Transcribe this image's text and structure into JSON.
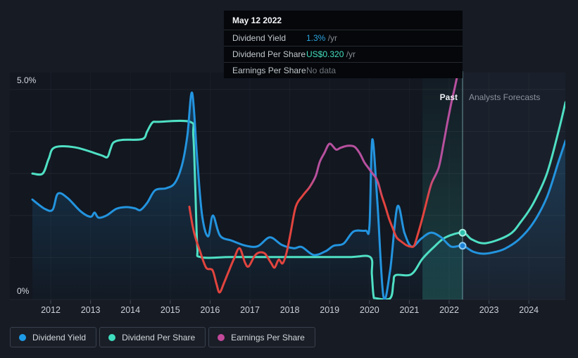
{
  "tooltip": {
    "date": "May 12 2022",
    "rows": [
      {
        "label": "Dividend Yield",
        "value": "1.3%",
        "suffix": " /yr",
        "value_color": "#2ba3e0"
      },
      {
        "label": "Dividend Per Share",
        "value": "US$0.320",
        "suffix": " /yr",
        "value_color": "#43dfc0"
      },
      {
        "label": "Earnings Per Share",
        "value": "No data",
        "suffix": "",
        "value_color": "#70767e"
      }
    ]
  },
  "labels": {
    "past": "Past",
    "forecast": "Analysts Forecasts"
  },
  "legend": {
    "items": [
      {
        "label": "Dividend Yield",
        "color": "#1e9be8"
      },
      {
        "label": "Dividend Per Share",
        "color": "#3fdec0"
      },
      {
        "label": "Earnings Per Share",
        "color": "#c2499a"
      }
    ]
  },
  "colors": {
    "page_bg": "#161b24",
    "past_plot_bg": "#121720",
    "forecast_plot_bg": "#1a202b",
    "band_teal": "64,224,195",
    "grid_line": "rgba(255,255,255,0.055)",
    "year_grid_line": "rgba(255,255,255,0.03)",
    "tick": "#434b56",
    "axis_text": "#cdd2d8",
    "divider": "rgba(135,190,198,0.5)",
    "blue": "#2394df",
    "teal": "#4fe0c4",
    "red": "#e2443e",
    "magenta": "#b7509e",
    "area_fill_rgb": "35,148,223"
  },
  "chart_data": {
    "type": "line",
    "title": "Dividend history and forecast",
    "x_axis": {
      "ticks": [
        2012,
        2013,
        2014,
        2015,
        2016,
        2017,
        2018,
        2019,
        2020,
        2021,
        2022,
        2023,
        2024
      ]
    },
    "y_axis": {
      "label_top": "5.0%",
      "label_bottom": "0%",
      "range_pct": [
        0,
        5
      ],
      "gridline_every_pct": 1
    },
    "divider_year": 2022.336,
    "highlight_band": {
      "from_year": 2021.33,
      "to_year": 2022.336
    },
    "series": [
      {
        "name": "Dividend Per Share",
        "color": "#4fe0c4",
        "marker": {
          "year": 2022.336,
          "pct": 1.59,
          "fill": "#2dbfae",
          "ring": "#a9eee1"
        },
        "points": [
          [
            2011.54,
            3.0
          ],
          [
            2011.8,
            3.0
          ],
          [
            2011.95,
            3.35
          ],
          [
            2012.1,
            3.62
          ],
          [
            2012.62,
            3.62
          ],
          [
            2013.25,
            3.44
          ],
          [
            2013.42,
            3.39
          ],
          [
            2013.5,
            3.58
          ],
          [
            2013.58,
            3.74
          ],
          [
            2013.8,
            3.8
          ],
          [
            2014.3,
            3.82
          ],
          [
            2014.42,
            4.0
          ],
          [
            2014.55,
            4.21
          ],
          [
            2014.7,
            4.23
          ],
          [
            2015.5,
            4.23
          ],
          [
            2015.58,
            3.9
          ],
          [
            2015.63,
            2.6
          ],
          [
            2015.68,
            1.25
          ],
          [
            2015.76,
            1.01
          ],
          [
            2016.5,
            1.01
          ],
          [
            2017.5,
            1.01
          ],
          [
            2018.5,
            1.01
          ],
          [
            2019.5,
            1.01
          ],
          [
            2020.02,
            1.01
          ],
          [
            2020.06,
            0.6
          ],
          [
            2020.1,
            0.1
          ],
          [
            2020.16,
            0.03
          ],
          [
            2020.52,
            0.03
          ],
          [
            2020.6,
            0.4
          ],
          [
            2020.66,
            0.58
          ],
          [
            2021.05,
            0.6
          ],
          [
            2021.33,
            0.97
          ],
          [
            2021.63,
            1.26
          ],
          [
            2021.91,
            1.48
          ],
          [
            2022.336,
            1.59
          ],
          [
            2022.57,
            1.43
          ],
          [
            2022.92,
            1.34
          ],
          [
            2023.5,
            1.54
          ],
          [
            2023.8,
            1.85
          ],
          [
            2024.1,
            2.27
          ],
          [
            2024.45,
            2.99
          ],
          [
            2024.74,
            3.99
          ],
          [
            2024.92,
            4.7
          ]
        ]
      },
      {
        "name": "Dividend Yield",
        "color": "#2394df",
        "area": true,
        "marker": {
          "year": 2022.336,
          "pct": 1.28,
          "fill": "#1c82d6",
          "ring": "#8ac9f2"
        },
        "points": [
          [
            2011.54,
            2.38
          ],
          [
            2011.85,
            2.16
          ],
          [
            2012.05,
            2.14
          ],
          [
            2012.18,
            2.52
          ],
          [
            2012.42,
            2.42
          ],
          [
            2012.75,
            2.1
          ],
          [
            2013.0,
            1.97
          ],
          [
            2013.1,
            2.07
          ],
          [
            2013.2,
            1.95
          ],
          [
            2013.4,
            2.0
          ],
          [
            2013.65,
            2.16
          ],
          [
            2013.9,
            2.2
          ],
          [
            2014.12,
            2.17
          ],
          [
            2014.25,
            2.13
          ],
          [
            2014.42,
            2.3
          ],
          [
            2014.62,
            2.6
          ],
          [
            2014.9,
            2.65
          ],
          [
            2015.12,
            2.78
          ],
          [
            2015.3,
            3.22
          ],
          [
            2015.43,
            3.9
          ],
          [
            2015.55,
            4.92
          ],
          [
            2015.68,
            3.3
          ],
          [
            2015.8,
            2.0
          ],
          [
            2015.95,
            1.5
          ],
          [
            2016.07,
            2.0
          ],
          [
            2016.25,
            1.52
          ],
          [
            2016.55,
            1.4
          ],
          [
            2016.9,
            1.28
          ],
          [
            2017.2,
            1.27
          ],
          [
            2017.5,
            1.48
          ],
          [
            2017.8,
            1.3
          ],
          [
            2018.1,
            1.22
          ],
          [
            2018.3,
            1.25
          ],
          [
            2018.6,
            1.06
          ],
          [
            2018.9,
            1.15
          ],
          [
            2019.1,
            1.28
          ],
          [
            2019.35,
            1.33
          ],
          [
            2019.6,
            1.62
          ],
          [
            2019.9,
            1.64
          ],
          [
            2020.0,
            1.75
          ],
          [
            2020.07,
            3.81
          ],
          [
            2020.2,
            2.3
          ],
          [
            2020.35,
            0.08
          ],
          [
            2020.52,
            0.7
          ],
          [
            2020.7,
            2.21
          ],
          [
            2020.88,
            1.58
          ],
          [
            2021.06,
            1.26
          ],
          [
            2021.3,
            1.45
          ],
          [
            2021.54,
            1.59
          ],
          [
            2021.8,
            1.48
          ],
          [
            2022.05,
            1.26
          ],
          [
            2022.336,
            1.28
          ],
          [
            2022.6,
            1.14
          ],
          [
            2022.85,
            1.09
          ],
          [
            2023.1,
            1.12
          ],
          [
            2023.4,
            1.21
          ],
          [
            2023.75,
            1.43
          ],
          [
            2024.1,
            1.81
          ],
          [
            2024.45,
            2.43
          ],
          [
            2024.74,
            3.27
          ],
          [
            2024.92,
            3.78
          ]
        ]
      },
      {
        "name": "Earnings Per Share",
        "color_stops": [
          {
            "year": 2015.48,
            "color": "#e2443e"
          },
          {
            "year": 2018.38,
            "color": "#e2443e"
          },
          {
            "year": 2018.62,
            "color": "#b7509e"
          },
          {
            "year": 2020.14,
            "color": "#b7509e"
          },
          {
            "year": 2020.34,
            "color": "#e2443e"
          },
          {
            "year": 2021.44,
            "color": "#e2443e"
          },
          {
            "year": 2021.66,
            "color": "#b7509e"
          },
          {
            "year": 2022.21,
            "color": "#b7509e"
          }
        ],
        "points": [
          [
            2015.48,
            2.21
          ],
          [
            2015.56,
            1.76
          ],
          [
            2015.63,
            1.48
          ],
          [
            2015.74,
            1.17
          ],
          [
            2015.9,
            0.76
          ],
          [
            2016.06,
            0.7
          ],
          [
            2016.16,
            0.37
          ],
          [
            2016.24,
            0.17
          ],
          [
            2016.36,
            0.42
          ],
          [
            2016.48,
            0.7
          ],
          [
            2016.6,
            0.97
          ],
          [
            2016.74,
            1.22
          ],
          [
            2016.88,
            0.87
          ],
          [
            2016.97,
            0.79
          ],
          [
            2017.12,
            1.04
          ],
          [
            2017.24,
            1.12
          ],
          [
            2017.38,
            1.09
          ],
          [
            2017.53,
            0.87
          ],
          [
            2017.62,
            0.76
          ],
          [
            2017.72,
            0.95
          ],
          [
            2017.82,
            0.86
          ],
          [
            2017.92,
            1.12
          ],
          [
            2018.02,
            1.58
          ],
          [
            2018.15,
            2.21
          ],
          [
            2018.33,
            2.48
          ],
          [
            2018.5,
            2.68
          ],
          [
            2018.65,
            2.94
          ],
          [
            2018.75,
            3.27
          ],
          [
            2018.87,
            3.49
          ],
          [
            2019.0,
            3.71
          ],
          [
            2019.16,
            3.57
          ],
          [
            2019.27,
            3.61
          ],
          [
            2019.45,
            3.66
          ],
          [
            2019.62,
            3.64
          ],
          [
            2019.75,
            3.49
          ],
          [
            2019.87,
            3.27
          ],
          [
            2019.96,
            3.15
          ],
          [
            2020.06,
            3.02
          ],
          [
            2020.16,
            2.9
          ],
          [
            2020.22,
            2.77
          ],
          [
            2020.31,
            2.47
          ],
          [
            2020.4,
            2.21
          ],
          [
            2020.49,
            1.93
          ],
          [
            2020.58,
            1.71
          ],
          [
            2020.68,
            1.48
          ],
          [
            2020.8,
            1.38
          ],
          [
            2020.93,
            1.29
          ],
          [
            2021.03,
            1.26
          ],
          [
            2021.12,
            1.28
          ],
          [
            2021.21,
            1.54
          ],
          [
            2021.34,
            1.98
          ],
          [
            2021.46,
            2.43
          ],
          [
            2021.56,
            2.77
          ],
          [
            2021.74,
            3.15
          ],
          [
            2021.86,
            3.72
          ],
          [
            2021.96,
            4.23
          ],
          [
            2022.05,
            4.66
          ],
          [
            2022.13,
            5.0
          ],
          [
            2022.21,
            5.35
          ]
        ]
      }
    ]
  }
}
